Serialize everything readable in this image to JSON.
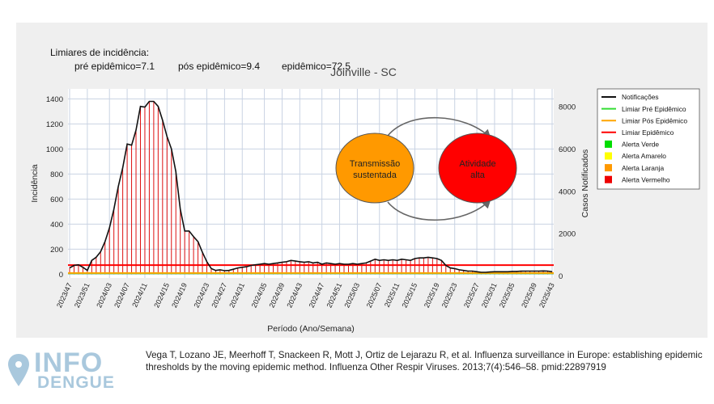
{
  "chart_data": {
    "type": "bar+line",
    "title": "Joinville - SC",
    "thresholds_heading": "Limiares de incidência:",
    "thresholds": [
      {
        "label": "pré epidêmico=7.1",
        "value": 7.1
      },
      {
        "label": "pós epidêmico=9.4",
        "value": 9.4
      },
      {
        "label": "epidêmico=72.5",
        "value": 72.5
      }
    ],
    "xlabel": "Período (Ano/Semana)",
    "ylabel": "Incidência",
    "y2label": "Casos Notificados",
    "ylim": [
      -30,
      1480
    ],
    "y2lim": [
      -100,
      8850
    ],
    "yticks": [
      0,
      200,
      400,
      600,
      800,
      1000,
      1200,
      1400
    ],
    "y2ticks": [
      0,
      2000,
      4000,
      6000,
      8000
    ],
    "xticks": [
      "2023/47",
      "2023/51",
      "2024/03",
      "2024/07",
      "2024/11",
      "2024/15",
      "2024/19",
      "2024/23",
      "2024/27",
      "2024/31",
      "2024/35",
      "2024/39",
      "2024/43",
      "2024/47",
      "2024/51",
      "2025/03",
      "2025/07",
      "2025/11",
      "2025/15",
      "2025/19",
      "2025/23",
      "2025/27",
      "2025/31",
      "2025/35",
      "2025/39",
      "2025/43"
    ],
    "series": [
      {
        "name": "Notificações",
        "color": "#111111",
        "values": [
          50,
          70,
          75,
          55,
          30,
          110,
          135,
          180,
          260,
          370,
          520,
          700,
          850,
          1040,
          1030,
          1150,
          1340,
          1335,
          1380,
          1380,
          1340,
          1230,
          1100,
          1000,
          820,
          520,
          345,
          345,
          300,
          260,
          175,
          100,
          45,
          30,
          35,
          28,
          30,
          40,
          50,
          55,
          60,
          70,
          75,
          80,
          85,
          80,
          85,
          90,
          95,
          100,
          110,
          105,
          100,
          95,
          100,
          90,
          95,
          80,
          90,
          85,
          80,
          85,
          80,
          80,
          85,
          80,
          85,
          90,
          105,
          120,
          110,
          115,
          110,
          115,
          110,
          120,
          115,
          110,
          125,
          130,
          130,
          135,
          130,
          125,
          110,
          70,
          50,
          45,
          35,
          30,
          25,
          25,
          20,
          15,
          15,
          18,
          20,
          20,
          20,
          20,
          22,
          22,
          24,
          25,
          25,
          25,
          25,
          26,
          25,
          20
        ]
      },
      {
        "name": "Limiar Pré Epidêmico",
        "color": "#33dd33",
        "value": 7.1
      },
      {
        "name": "Limiar Pós Epidêmico",
        "color": "#ffa500",
        "value": 9.4
      },
      {
        "name": "Limiar Epidêmico",
        "color": "#ff0000",
        "value": 72.5
      }
    ],
    "alert_legend": [
      {
        "name": "Alerta Verde",
        "color": "#00dd00"
      },
      {
        "name": "Alerta Amarelo",
        "color": "#ffff00"
      },
      {
        "name": "Alerta Laranja",
        "color": "#ff9900"
      },
      {
        "name": "Alerta Vermelho",
        "color": "#ee0000"
      }
    ],
    "annotations": {
      "left_state": "Transmissão sustentada",
      "right_state": "Atividade alta"
    }
  },
  "logo": {
    "info": "INFO",
    "dengue": "DENGUE"
  },
  "citation": "Vega T, Lozano JE, Meerhoff T, Snackeen R, Mott J, Ortiz de Lejarazu R, et al. Influenza surveillance in Europe: establishing epidemic thresholds by the moving epidemic method. Influenza Other Respir Viruses. 2013;7(4):546–58. pmid:22897919",
  "colors": {
    "bar": "#dd1111",
    "grid": "#c9d3e3",
    "orange_node": "#ff9900",
    "red_node": "#ff0000"
  }
}
